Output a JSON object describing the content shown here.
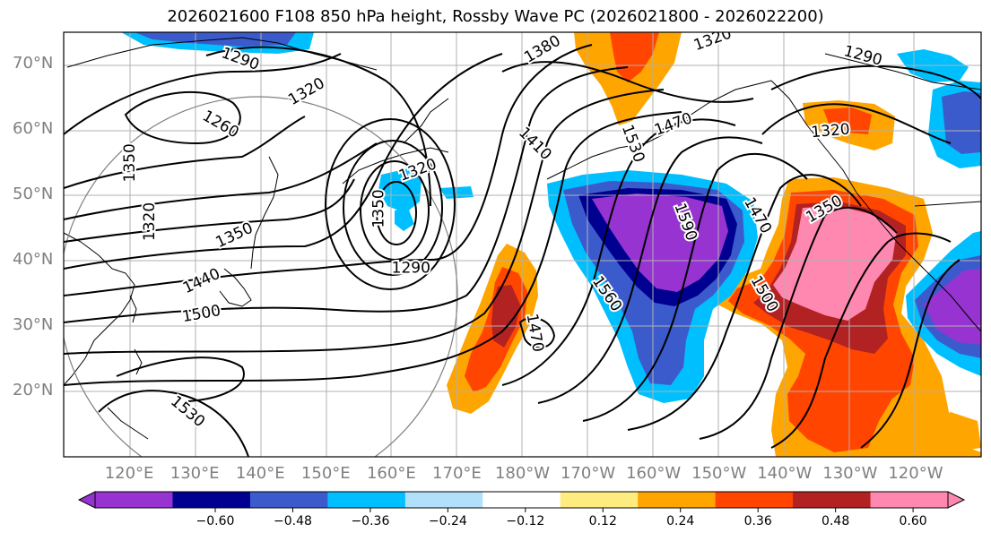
{
  "title": "2026021600 F108 850 hPa height, Rossby Wave PC (2026021800 - 2026022200)",
  "lat_labels": [
    {
      "label": "70°N",
      "lat": 70
    },
    {
      "label": "60°N",
      "lat": 60
    },
    {
      "label": "50°N",
      "lat": 50
    },
    {
      "label": "40°N",
      "lat": 40
    },
    {
      "label": "30°N",
      "lat": 30
    },
    {
      "label": "20°N",
      "lat": 20
    }
  ],
  "lon_labels": [
    "120°E",
    "130°E",
    "140°E",
    "150°E",
    "160°E",
    "170°E",
    "180°W",
    "170°W",
    "160°W",
    "150°W",
    "140°W",
    "130°W",
    "120°W"
  ],
  "contour_labels": [
    {
      "text": "1290",
      "lon": 137,
      "lat": 71,
      "angle": 20
    },
    {
      "text": "1380",
      "lon": 183,
      "lat": 72.5,
      "angle": -30
    },
    {
      "text": "1320",
      "lon": 209,
      "lat": 74,
      "angle": -20
    },
    {
      "text": "1290",
      "lon": 232,
      "lat": 71.5,
      "angle": 15
    },
    {
      "text": "1320",
      "lon": 147,
      "lat": 66,
      "angle": -30
    },
    {
      "text": "1260",
      "lon": 134,
      "lat": 61,
      "angle": 30
    },
    {
      "text": "1410",
      "lon": 182,
      "lat": 58,
      "angle": 45
    },
    {
      "text": "1530",
      "lon": 197,
      "lat": 58,
      "angle": 70
    },
    {
      "text": "1470",
      "lon": 203,
      "lat": 61,
      "angle": -20
    },
    {
      "text": "1320",
      "lon": 227,
      "lat": 60,
      "angle": -5
    },
    {
      "text": "1350",
      "lon": 120,
      "lat": 55,
      "angle": -90
    },
    {
      "text": "1320",
      "lon": 164,
      "lat": 54,
      "angle": -20
    },
    {
      "text": "1350",
      "lon": 158,
      "lat": 48,
      "angle": -90
    },
    {
      "text": "1320",
      "lon": 123,
      "lat": 46,
      "angle": -90
    },
    {
      "text": "1350",
      "lon": 136,
      "lat": 44,
      "angle": -25
    },
    {
      "text": "1590",
      "lon": 205,
      "lat": 46,
      "angle": 70
    },
    {
      "text": "1470",
      "lon": 216,
      "lat": 47,
      "angle": 60
    },
    {
      "text": "1350",
      "lon": 226,
      "lat": 48,
      "angle": -30
    },
    {
      "text": "1290",
      "lon": 163,
      "lat": 39,
      "angle": 0
    },
    {
      "text": "1440",
      "lon": 131,
      "lat": 37,
      "angle": -25
    },
    {
      "text": "1560",
      "lon": 193,
      "lat": 35,
      "angle": 55
    },
    {
      "text": "1500",
      "lon": 217,
      "lat": 35,
      "angle": 60
    },
    {
      "text": "1500",
      "lon": 131,
      "lat": 32,
      "angle": -10
    },
    {
      "text": "1470",
      "lon": 182,
      "lat": 29,
      "angle": 80
    },
    {
      "text": "1530",
      "lon": 129,
      "lat": 17,
      "angle": 40
    }
  ],
  "colorbar": {
    "ticks": [
      "−0.60",
      "−0.48",
      "−0.36",
      "−0.24",
      "−0.12",
      "0.12",
      "0.24",
      "0.36",
      "0.48",
      "0.60"
    ],
    "colors": [
      "#9633d1",
      "#000090",
      "#3b5bcd",
      "#00bfff",
      "#b0e0fa",
      "#ffffff",
      "#ffec80",
      "#ffa500",
      "#ff4500",
      "#b22222",
      "#ff88b0",
      "#ff88b0"
    ]
  }
}
